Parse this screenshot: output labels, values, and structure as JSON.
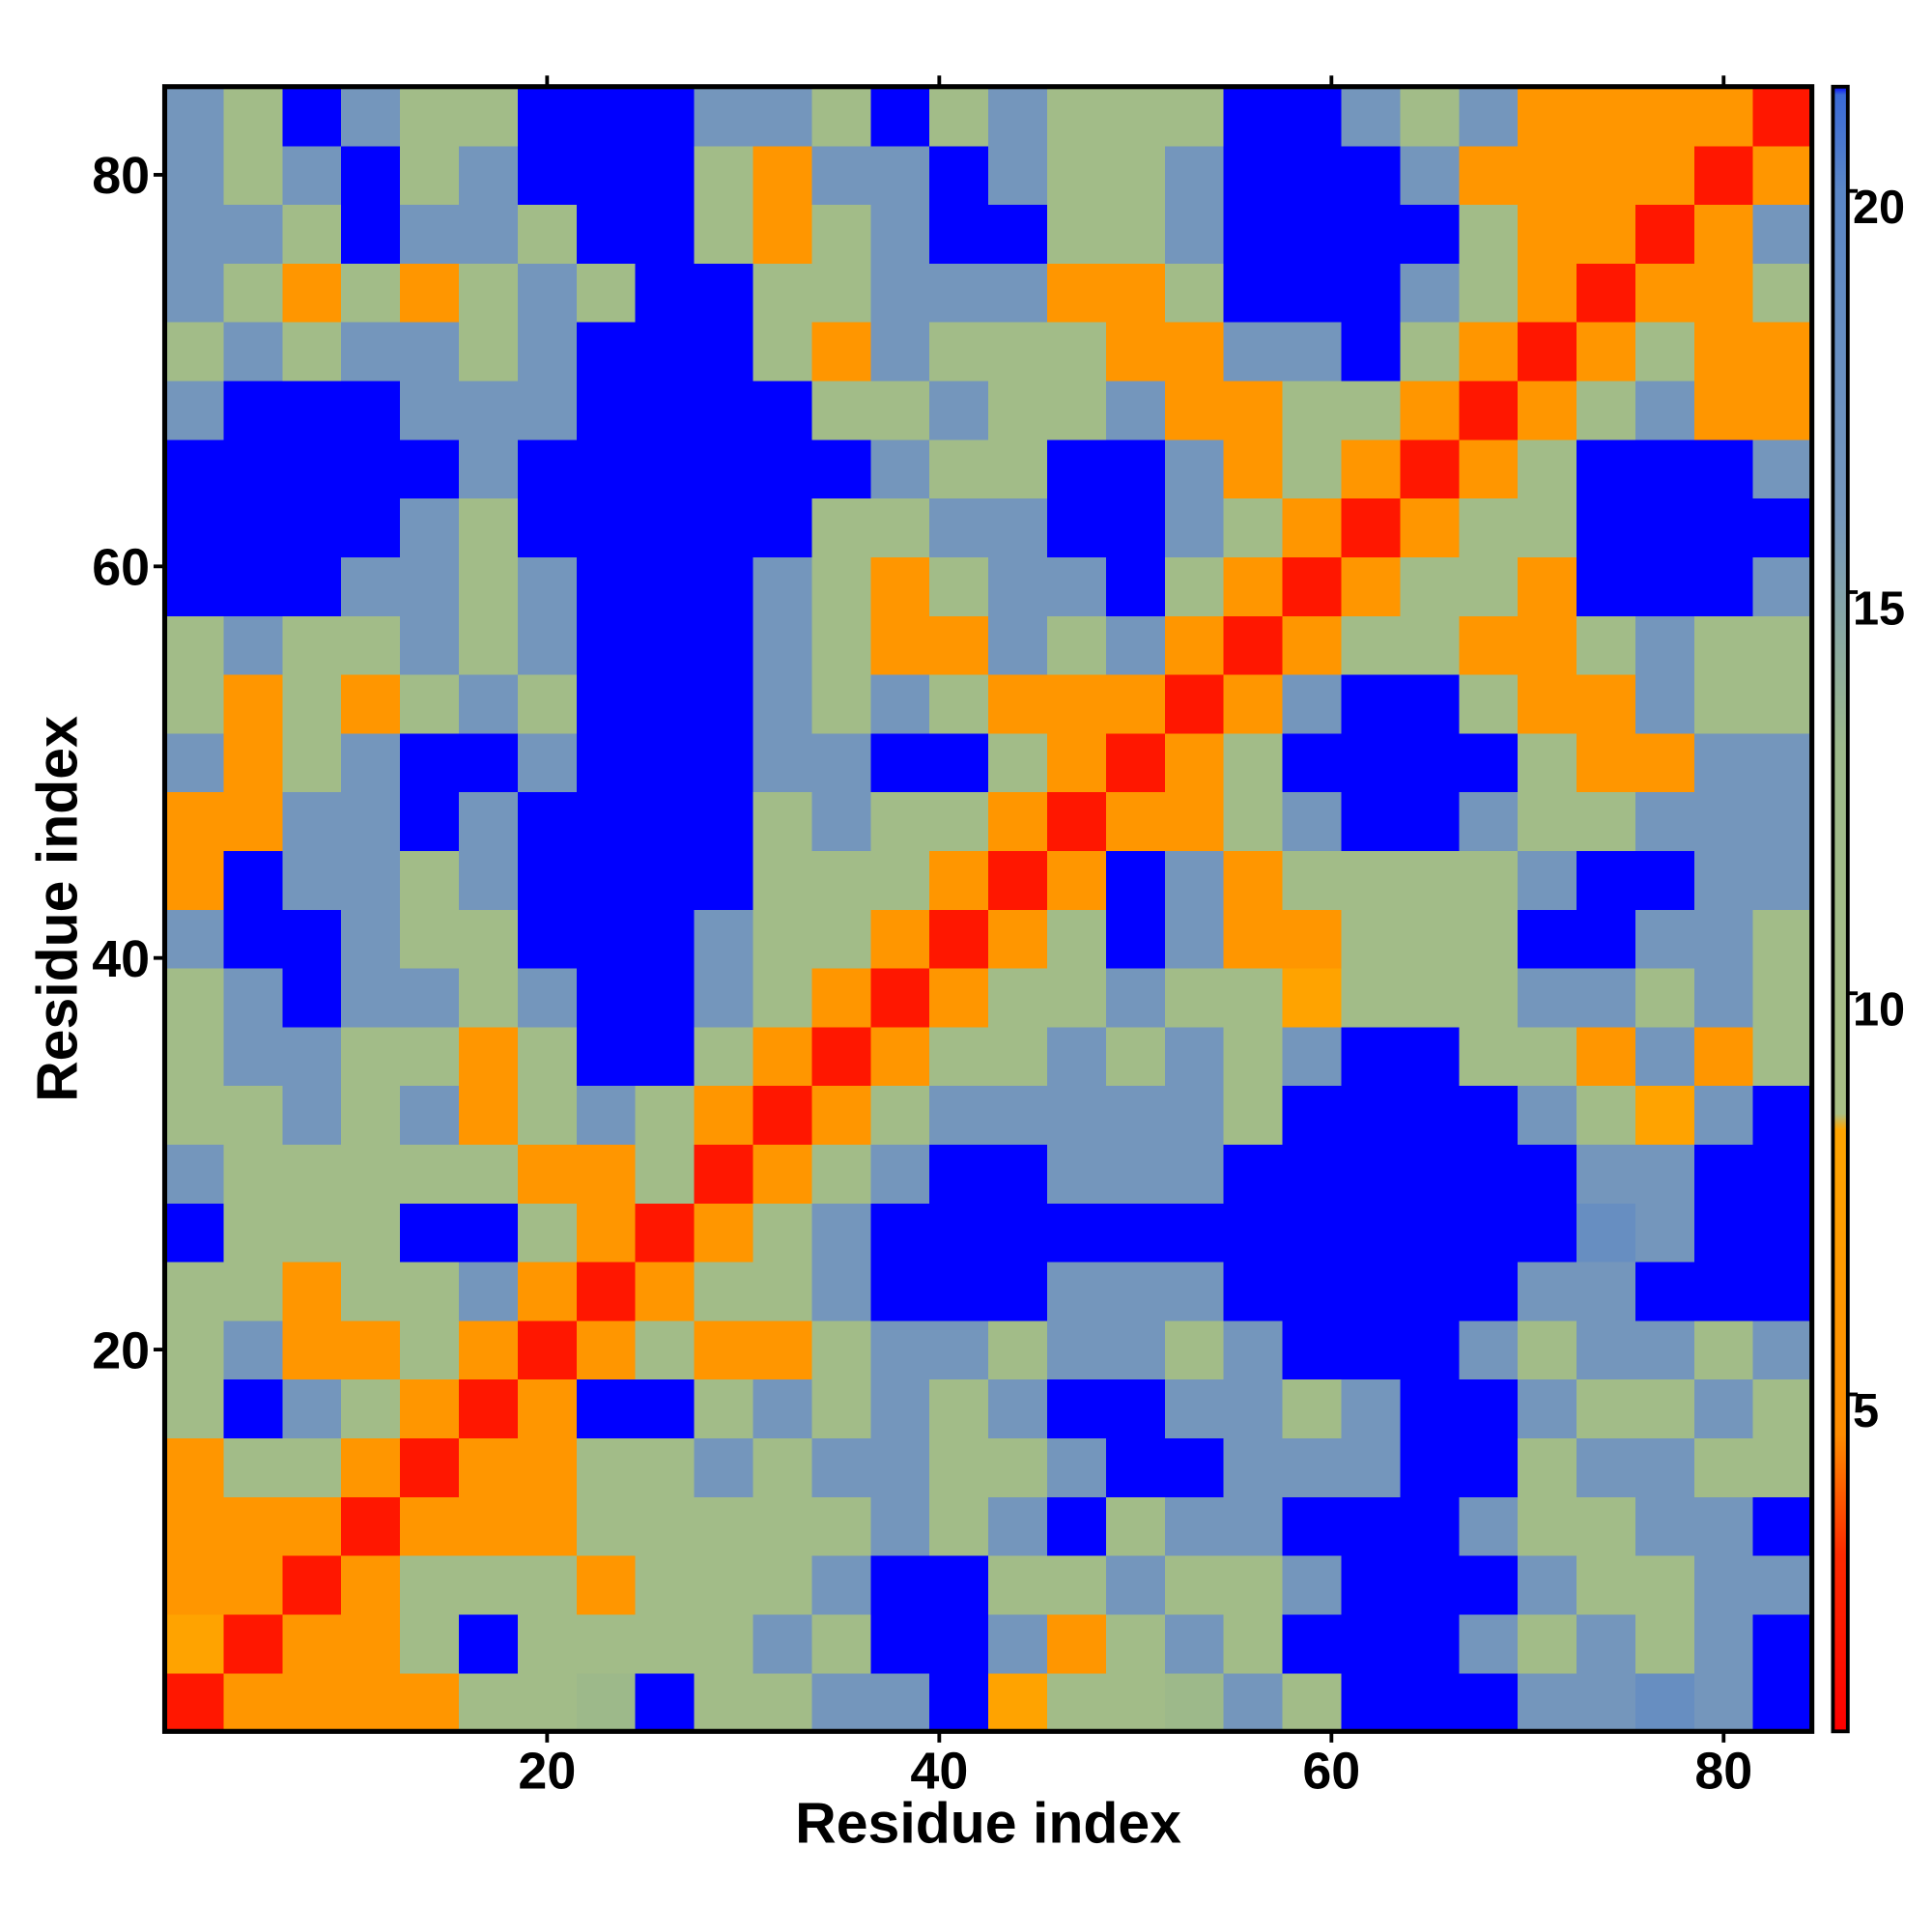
{
  "chart_data": {
    "type": "heatmap",
    "xlabel": "Residue index",
    "ylabel": "Residue index",
    "x": [
      2,
      5,
      8,
      11,
      14,
      17,
      20,
      23,
      26,
      29,
      32,
      35,
      38,
      41,
      44,
      47,
      50,
      53,
      56,
      59,
      62,
      65,
      68,
      71,
      74,
      77,
      80,
      83
    ],
    "y": [
      2,
      5,
      8,
      11,
      14,
      17,
      20,
      23,
      26,
      29,
      32,
      35,
      38,
      41,
      44,
      47,
      50,
      53,
      56,
      59,
      62,
      65,
      68,
      71,
      74,
      77,
      80,
      83
    ],
    "xlim": [
      0.5,
      84.5
    ],
    "ylim": [
      0.5,
      84.5
    ],
    "xticks": [
      20,
      40,
      60,
      80
    ],
    "yticks": [
      20,
      40,
      60,
      80
    ],
    "colorscale": [
      [
        0.8,
        "#ff0000"
      ],
      [
        3.0,
        "#ff2a00"
      ],
      [
        4.5,
        "#ff8c00"
      ],
      [
        8.3,
        "#ffa500"
      ],
      [
        8.5,
        "#a9bf85"
      ],
      [
        13,
        "#9db98a"
      ],
      [
        16,
        "#7496bc"
      ],
      [
        20,
        "#5a86c6"
      ],
      [
        21.2,
        "#3a6ad8"
      ],
      [
        22,
        "#0000ff"
      ]
    ],
    "colorbar": {
      "lim": [
        0.8,
        21.3
      ],
      "ticks": [
        5,
        10,
        15,
        20
      ]
    },
    "values": [
      [
        2,
        6,
        6,
        6,
        6,
        11,
        11,
        13,
        22,
        11,
        11,
        16,
        16,
        22,
        8,
        11,
        11,
        13,
        16,
        11,
        22,
        22,
        22,
        16,
        16,
        18,
        16,
        22
      ],
      [
        8,
        2,
        6,
        6,
        11,
        22,
        11,
        11,
        11,
        11,
        16,
        11,
        22,
        22,
        16,
        6,
        11,
        16,
        11,
        22,
        22,
        22,
        16,
        11,
        16,
        11,
        16,
        22
      ],
      [
        6,
        6,
        2,
        6,
        11,
        11,
        11,
        6,
        11,
        11,
        11,
        16,
        22,
        22,
        11,
        11,
        16,
        11,
        11,
        16,
        22,
        22,
        22,
        16,
        11,
        11,
        16,
        16
      ],
      [
        6,
        6,
        6,
        2,
        6,
        6,
        6,
        11,
        11,
        11,
        11,
        11,
        16,
        11,
        16,
        22,
        11,
        16,
        16,
        22,
        22,
        22,
        16,
        11,
        11,
        16,
        16,
        22
      ],
      [
        6,
        11,
        11,
        6,
        2,
        6,
        6,
        11,
        11,
        16,
        11,
        16,
        16,
        11,
        11,
        16,
        22,
        22,
        16,
        16,
        16,
        22,
        22,
        11,
        16,
        16,
        11,
        11
      ],
      [
        11,
        22,
        16,
        11,
        6,
        2,
        6,
        22,
        22,
        11,
        16,
        11,
        16,
        11,
        16,
        22,
        22,
        16,
        16,
        11,
        16,
        22,
        22,
        16,
        11,
        11,
        16,
        11
      ],
      [
        11,
        16,
        6,
        6,
        11,
        6,
        2,
        6,
        11,
        6,
        6,
        11,
        16,
        16,
        11,
        16,
        16,
        11,
        16,
        22,
        22,
        22,
        16,
        11,
        16,
        16,
        11,
        16
      ],
      [
        11,
        11,
        6,
        11,
        11,
        16,
        6,
        2,
        6,
        11,
        11,
        16,
        22,
        22,
        22,
        16,
        16,
        16,
        22,
        22,
        22,
        22,
        22,
        16,
        16,
        22,
        22,
        22
      ],
      [
        22,
        11,
        11,
        11,
        22,
        22,
        11,
        6,
        2,
        6,
        11,
        16,
        22,
        22,
        22,
        22,
        22,
        22,
        22,
        22,
        22,
        22,
        22,
        22,
        18,
        16,
        22,
        22
      ],
      [
        16,
        11,
        11,
        11,
        11,
        11,
        6,
        6,
        11,
        2,
        6,
        11,
        16,
        22,
        22,
        16,
        16,
        16,
        22,
        22,
        22,
        22,
        22,
        22,
        16,
        16,
        22,
        22
      ],
      [
        11,
        11,
        16,
        11,
        16,
        6,
        11,
        16,
        11,
        6,
        2,
        6,
        11,
        16,
        16,
        16,
        16,
        16,
        11,
        22,
        22,
        22,
        22,
        16,
        11,
        8,
        16,
        22
      ],
      [
        11,
        16,
        16,
        11,
        11,
        6,
        11,
        22,
        22,
        11,
        6,
        2,
        6,
        11,
        11,
        16,
        11,
        16,
        11,
        16,
        22,
        22,
        11,
        11,
        6,
        16,
        6,
        11
      ],
      [
        11,
        16,
        22,
        16,
        16,
        11,
        16,
        22,
        22,
        16,
        11,
        6,
        2,
        6,
        11,
        11,
        16,
        11,
        11,
        8,
        11,
        11,
        11,
        16,
        16,
        11,
        16,
        11
      ],
      [
        16,
        22,
        22,
        16,
        11,
        11,
        22,
        22,
        22,
        16,
        11,
        11,
        6,
        2,
        6,
        11,
        22,
        16,
        6,
        6,
        11,
        11,
        11,
        22,
        22,
        16,
        16,
        11
      ],
      [
        6,
        22,
        16,
        16,
        11,
        16,
        22,
        22,
        22,
        22,
        11,
        11,
        11,
        6,
        2,
        6,
        22,
        16,
        6,
        11,
        11,
        11,
        11,
        16,
        22,
        22,
        16,
        16
      ],
      [
        6,
        6,
        16,
        16,
        22,
        16,
        22,
        22,
        22,
        22,
        11,
        16,
        11,
        11,
        6,
        2,
        6,
        6,
        11,
        16,
        22,
        22,
        16,
        11,
        11,
        16,
        16,
        16
      ],
      [
        16,
        6,
        11,
        16,
        22,
        22,
        16,
        22,
        22,
        22,
        16,
        16,
        22,
        22,
        11,
        6,
        2,
        6,
        11,
        22,
        22,
        22,
        22,
        11,
        6,
        6,
        16,
        16
      ],
      [
        11,
        6,
        11,
        6,
        11,
        16,
        11,
        22,
        22,
        22,
        16,
        11,
        16,
        11,
        6,
        6,
        6,
        2,
        6,
        16,
        22,
        22,
        11,
        6,
        6,
        16,
        11,
        11
      ],
      [
        11,
        16,
        11,
        11,
        16,
        11,
        16,
        22,
        22,
        22,
        16,
        11,
        6,
        6,
        16,
        11,
        16,
        6,
        2,
        6,
        11,
        11,
        6,
        6,
        11,
        16,
        11,
        11
      ],
      [
        22,
        22,
        22,
        16,
        16,
        11,
        16,
        22,
        22,
        22,
        16,
        11,
        6,
        11,
        16,
        16,
        22,
        11,
        6,
        2,
        6,
        11,
        11,
        6,
        22,
        22,
        22,
        16
      ],
      [
        22,
        22,
        22,
        22,
        16,
        11,
        22,
        22,
        22,
        22,
        22,
        11,
        11,
        16,
        16,
        22,
        22,
        16,
        11,
        6,
        2,
        6,
        11,
        11,
        22,
        22,
        22,
        22
      ],
      [
        22,
        22,
        22,
        22,
        22,
        16,
        22,
        22,
        22,
        22,
        22,
        22,
        16,
        11,
        11,
        22,
        22,
        16,
        6,
        11,
        6,
        2,
        6,
        11,
        22,
        22,
        22,
        16
      ],
      [
        16,
        22,
        22,
        22,
        16,
        16,
        16,
        22,
        22,
        22,
        22,
        11,
        11,
        16,
        11,
        11,
        16,
        6,
        6,
        11,
        11,
        6,
        2,
        6,
        11,
        16,
        6,
        6
      ],
      [
        11,
        16,
        11,
        16,
        16,
        11,
        16,
        22,
        22,
        22,
        11,
        6,
        16,
        11,
        11,
        11,
        6,
        6,
        16,
        16,
        22,
        11,
        6,
        2,
        6,
        11,
        6,
        6
      ],
      [
        16,
        11,
        6,
        11,
        6,
        11,
        16,
        11,
        22,
        22,
        11,
        11,
        16,
        16,
        16,
        6,
        6,
        11,
        22,
        22,
        22,
        16,
        11,
        6,
        2,
        6,
        6,
        11
      ],
      [
        16,
        16,
        11,
        22,
        16,
        16,
        11,
        22,
        22,
        11,
        6,
        11,
        16,
        22,
        22,
        11,
        11,
        16,
        22,
        22,
        22,
        22,
        11,
        6,
        6,
        2,
        6,
        16
      ],
      [
        16,
        11,
        16,
        22,
        11,
        16,
        22,
        22,
        22,
        11,
        6,
        16,
        16,
        22,
        16,
        11,
        11,
        16,
        22,
        22,
        22,
        16,
        6,
        6,
        6,
        6,
        2,
        6
      ],
      [
        16,
        11,
        22,
        16,
        11,
        11,
        22,
        22,
        22,
        16,
        16,
        11,
        22,
        11,
        16,
        11,
        11,
        11,
        22,
        22,
        16,
        11,
        16,
        6,
        6,
        6,
        6,
        2
      ]
    ]
  }
}
